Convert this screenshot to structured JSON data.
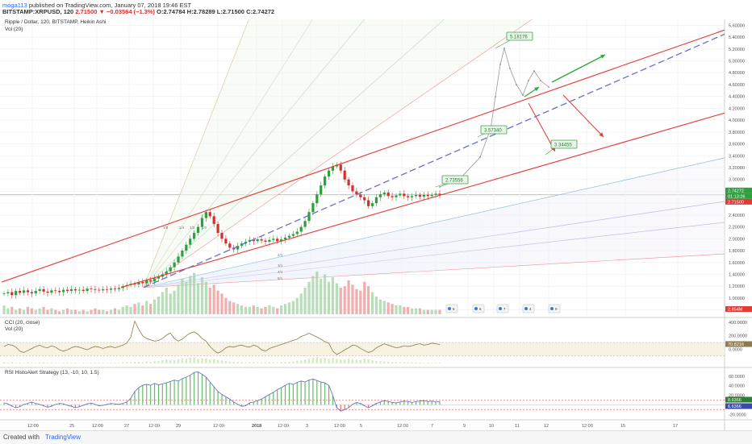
{
  "header": {
    "user": "moga113",
    "published": "published on TradingView.com, January 07, 2018 19:46 EST",
    "symbol_line": "BITSTAMP:XRPUSD, 120",
    "change": "2.71500 ▼ −0.03564 (−1.3%)",
    "ohlc": "O:2.74784 H:2.78289 L:2.71500 C:2.74272",
    "title": "Ripple / Dollar, 120, BITSTAMP, Heikin Ashi",
    "vol": "Vol (20)"
  },
  "panes": {
    "cci_title": "CCI (20, close)",
    "cci_vol": "Vol (20)",
    "rsi_title": "RSI HistoAlert Strategy (13, -10, 10, 1.5)"
  },
  "footer": {
    "created": "Created with",
    "brand": "TradingView"
  },
  "colors": {
    "up": "#2e9e3f",
    "down": "#d32f2f",
    "trend": "#e53935",
    "dashed": "#6a6fc9",
    "callout": "#43a047",
    "cci": "#8d7b4e",
    "rsi_hist": "#66bb6a",
    "rsi_line": "#5c6bc0"
  },
  "chart_data": {
    "type": "candlestick",
    "price_axis": {
      "ticks": [
        "5.60000",
        "5.40000",
        "5.20000",
        "5.00000",
        "4.80000",
        "4.60000",
        "4.40000",
        "4.20000",
        "4.00000",
        "3.80000",
        "3.60000",
        "3.40000",
        "3.20000",
        "3.00000",
        "2.80000",
        "2.60000",
        "2.40000",
        "2.20000",
        "2.00000",
        "1.80000",
        "1.60000",
        "1.40000",
        "1.20000",
        "1.00000",
        "0.80000"
      ],
      "range": [
        0.7,
        5.7
      ],
      "current_labels": [
        "2.74272",
        "01:13:26",
        "2.71500"
      ],
      "volume_label": "2.854M"
    },
    "cci_axis": {
      "ticks": [
        "400.0000",
        "200.0000",
        "0.0000"
      ],
      "range": [
        -250,
        450
      ],
      "current": "70.8216"
    },
    "rsi_axis": {
      "ticks": [
        "60.0000",
        "40.0000",
        "20.0000",
        "0.0000",
        "-20.0000"
      ],
      "range": [
        -28,
        75
      ],
      "current": [
        "8.6366",
        "6.6366"
      ]
    },
    "x_axis": {
      "ticks": [
        "12:00",
        "25",
        "12:00",
        "27",
        "12:00",
        "29",
        "12:00",
        "2018",
        "12:00",
        "3",
        "12:00",
        "5",
        "12:00",
        "7",
        "9",
        "10",
        "11",
        "12",
        "12:00",
        "15",
        "17"
      ]
    },
    "price_series": [
      1.08,
      1.1,
      1.05,
      1.12,
      1.09,
      1.13,
      1.1,
      1.08,
      1.12,
      1.15,
      1.11,
      1.09,
      1.13,
      1.12,
      1.1,
      1.14,
      1.12,
      1.15,
      1.13,
      1.14,
      1.12,
      1.16,
      1.15,
      1.14,
      1.13,
      1.15,
      1.14,
      1.16,
      1.15,
      1.17,
      1.2,
      1.22,
      1.24,
      1.23,
      1.27,
      1.25,
      1.3,
      1.28,
      1.33,
      1.36,
      1.4,
      1.45,
      1.52,
      1.6,
      1.7,
      1.8,
      1.9,
      2.0,
      2.1,
      2.2,
      2.35,
      2.45,
      2.38,
      2.25,
      2.1,
      2.0,
      1.92,
      1.85,
      1.82,
      1.88,
      1.92,
      1.95,
      1.98,
      1.96,
      1.99,
      1.97,
      1.95,
      1.98,
      2.0,
      1.96,
      1.99,
      2.02,
      2.05,
      2.08,
      2.12,
      2.2,
      2.3,
      2.45,
      2.6,
      2.75,
      2.9,
      3.05,
      3.15,
      3.22,
      3.25,
      3.15,
      3.0,
      2.9,
      2.8,
      2.75,
      2.7,
      2.65,
      2.55,
      2.6,
      2.7,
      2.75,
      2.78,
      2.72,
      2.7,
      2.73,
      2.76,
      2.72,
      2.7,
      2.72,
      2.74,
      2.71,
      2.74,
      2.72,
      2.74,
      2.76,
      2.74
    ],
    "volume_series": [
      0.6,
      0.4,
      0.5,
      0.3,
      0.4,
      0.3,
      0.5,
      0.4,
      0.3,
      0.4,
      0.5,
      0.3,
      0.4,
      0.3,
      0.2,
      0.3,
      0.4,
      0.3,
      0.3,
      0.2,
      0.3,
      0.2,
      0.3,
      0.4,
      0.3,
      0.3,
      0.2,
      0.3,
      0.4,
      0.3,
      0.5,
      0.6,
      0.5,
      0.7,
      0.8,
      0.6,
      0.9,
      0.7,
      1.0,
      1.2,
      1.5,
      1.8,
      1.4,
      1.6,
      2.0,
      2.4,
      2.2,
      2.6,
      2.8,
      2.1,
      2.5,
      2.2,
      1.8,
      2.0,
      1.6,
      1.4,
      1.1,
      0.9,
      0.8,
      0.7,
      0.6,
      0.5,
      0.5,
      0.6,
      0.5,
      0.4,
      0.5,
      0.6,
      0.5,
      0.4,
      0.6,
      0.7,
      0.8,
      0.9,
      1.1,
      1.4,
      1.8,
      2.2,
      2.6,
      2.9,
      2.4,
      2.7,
      2.2,
      2.5,
      2.1,
      1.8,
      1.9,
      2.3,
      2.0,
      1.7,
      1.6,
      2.2,
      1.9,
      1.5,
      1.2,
      1.0,
      0.9,
      0.8,
      0.7,
      0.6,
      0.6,
      0.5,
      0.5,
      0.4,
      0.4,
      0.4,
      0.3,
      0.3,
      0.3,
      0.3,
      0.3
    ],
    "cci_series": [
      40,
      70,
      60,
      30,
      -30,
      -50,
      -20,
      10,
      40,
      60,
      30,
      20,
      50,
      30,
      -10,
      -30,
      -10,
      20,
      40,
      30,
      10,
      -10,
      20,
      40,
      30,
      10,
      30,
      40,
      20,
      40,
      60,
      90,
      180,
      420,
      300,
      200,
      160,
      140,
      120,
      130,
      160,
      210,
      240,
      160,
      120,
      150,
      200,
      240,
      260,
      220,
      160,
      120,
      40,
      -20,
      -60,
      -30,
      20,
      40,
      30,
      50,
      60,
      40,
      30,
      60,
      40,
      -10,
      -30,
      10,
      30,
      50,
      70,
      90,
      110,
      130,
      150,
      190,
      210,
      240,
      210,
      180,
      150,
      110,
      90,
      -30,
      -80,
      -50,
      -10,
      20,
      60,
      50,
      10,
      -20,
      -50,
      -30,
      20,
      50,
      80,
      60,
      40,
      20,
      30,
      50,
      40,
      50,
      70,
      80,
      60,
      70,
      90,
      80,
      70
    ],
    "rsi_series": [
      4,
      2,
      -3,
      -6,
      -4,
      1,
      3,
      6,
      3,
      1,
      -2,
      -5,
      -3,
      1,
      3,
      2,
      -1,
      -3,
      -6,
      -4,
      -1,
      2,
      4,
      1,
      -2,
      -1,
      1,
      3,
      2,
      1,
      3,
      6,
      14,
      28,
      36,
      41,
      43,
      41,
      45,
      42,
      44,
      46,
      49,
      52,
      50,
      55,
      58,
      62,
      68,
      69,
      64,
      58,
      48,
      38,
      28,
      22,
      17,
      12,
      6,
      1,
      -3,
      -2,
      4,
      6,
      9,
      12,
      17,
      22,
      26,
      32,
      36,
      41,
      45,
      43,
      47,
      50,
      48,
      52,
      54,
      51,
      48,
      46,
      41,
      20,
      -6,
      -13,
      -10,
      -6,
      1,
      5,
      3,
      -2,
      -6,
      -2,
      3,
      6,
      9,
      7,
      5,
      4,
      6,
      8,
      7,
      5,
      7,
      8,
      9,
      7,
      8,
      6,
      7
    ],
    "annotations": [
      {
        "label": "5.18176",
        "price": 5.18
      },
      {
        "label": "3.57340",
        "price": 3.57
      },
      {
        "label": "3.34455",
        "price": 3.34
      },
      {
        "label": "2.73556",
        "price": 2.73
      }
    ],
    "fib_labels": [
      "1/8",
      "1/4",
      "1/3",
      "1/2",
      "2/1",
      "3/1",
      "4/1",
      "8/1"
    ],
    "event_labels": [
      "5",
      "6",
      "7",
      "4",
      "9",
      "11",
      "3"
    ]
  }
}
